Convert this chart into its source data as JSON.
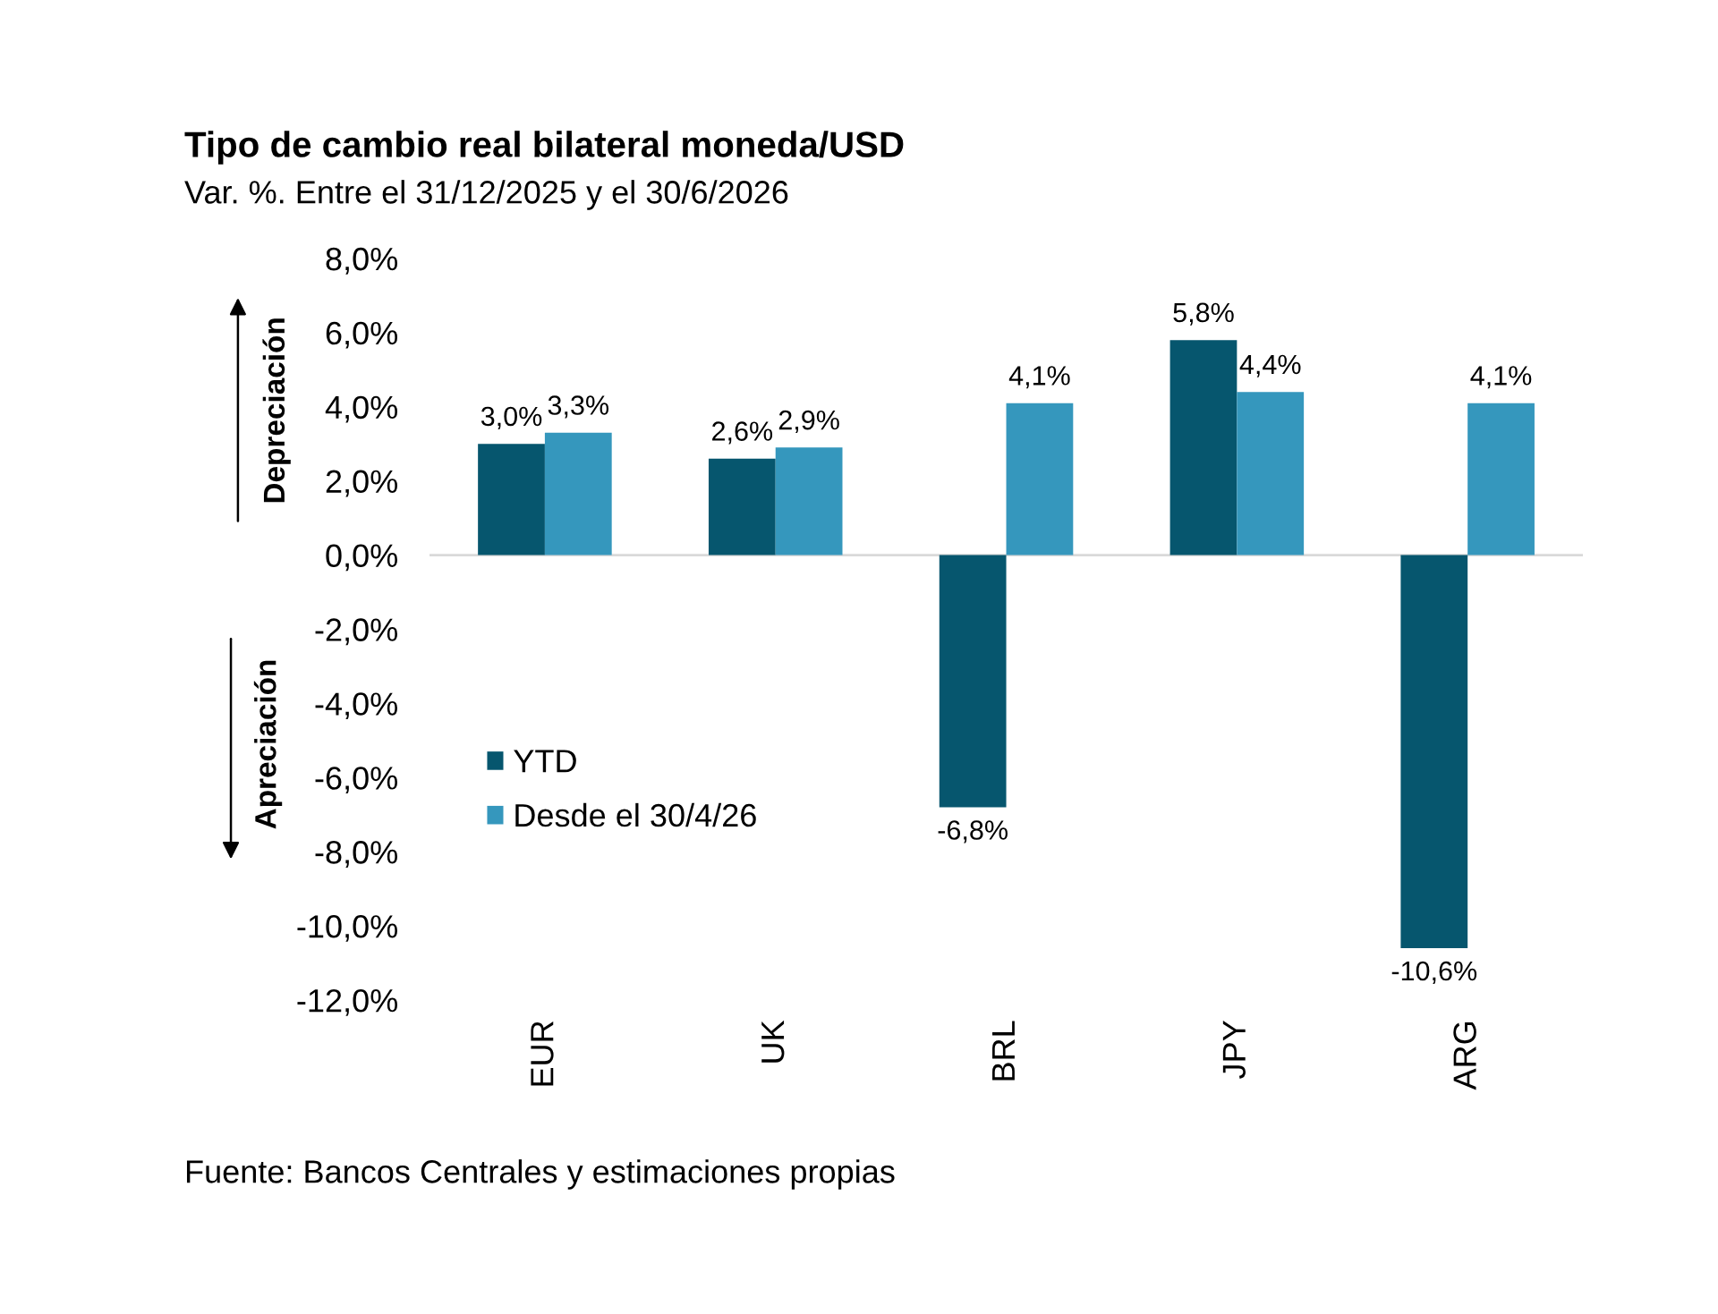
{
  "chart_data": {
    "type": "bar",
    "title": "Tipo de cambio real bilateral moneda/USD",
    "subtitle": "Var. %. Entre el 31/12/2025 y el 30/6/2026",
    "categories": [
      "EUR",
      "UK",
      "BRL",
      "JPY",
      "ARG"
    ],
    "series": [
      {
        "name": "YTD",
        "color": "#06566e",
        "values": [
          3.0,
          2.6,
          -6.8,
          5.8,
          -10.6
        ],
        "value_labels": [
          "3,0%",
          "2,6%",
          "-6,8%",
          "5,8%",
          "-10,6%"
        ]
      },
      {
        "name": "Desde el 30/4/26",
        "color": "#3597bd",
        "values": [
          3.3,
          2.9,
          4.1,
          4.4,
          4.1
        ],
        "value_labels": [
          "3,3%",
          "2,9%",
          "4,1%",
          "4,4%",
          "4,1%"
        ]
      }
    ],
    "ylim": [
      -12,
      8
    ],
    "yticks": [
      {
        "value": -12,
        "label": "-12,0%"
      },
      {
        "value": -10,
        "label": "-10,0%"
      },
      {
        "value": -8,
        "label": "-8,0%"
      },
      {
        "value": -6,
        "label": "-6,0%"
      },
      {
        "value": -4,
        "label": "-4,0%"
      },
      {
        "value": -2,
        "label": "-2,0%"
      },
      {
        "value": 0,
        "label": "0,0%"
      },
      {
        "value": 2,
        "label": "2,0%"
      },
      {
        "value": 4,
        "label": "4,0%"
      },
      {
        "value": 6,
        "label": "6,0%"
      },
      {
        "value": 8,
        "label": "8,0%"
      }
    ],
    "legend": "bottom left",
    "ref_lines": [
      {
        "axis": "y",
        "value": 0,
        "color": "#d9d9d9"
      }
    ],
    "annotations": [
      "Depreciación",
      "Apreciación",
      "Fuente: Bancos Centrales y estimaciones propias"
    ]
  }
}
